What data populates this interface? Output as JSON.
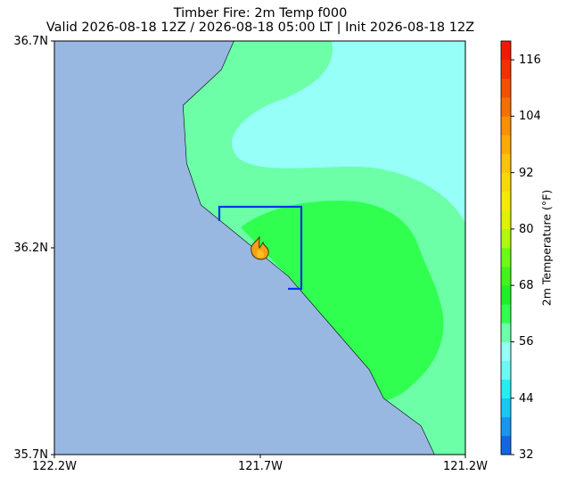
{
  "title": {
    "line1": "Timber Fire: 2m Temp f000",
    "line2": "Valid 2026-08-18 12Z / 2026-08-18 05:00 LT | Init 2026-08-18 12Z"
  },
  "axes": {
    "lat_ticks": [
      "36.7N",
      "36.2N",
      "35.7N"
    ],
    "lon_ticks": [
      "122.2W",
      "121.7W",
      "121.2W"
    ]
  },
  "colorbar": {
    "label": "2m Temperature (°F)",
    "ticks": [
      "32",
      "44",
      "56",
      "68",
      "80",
      "92",
      "104",
      "116"
    ],
    "levels": [
      {
        "from": 32,
        "to": 36,
        "color": "#1466e0"
      },
      {
        "from": 36,
        "to": 40,
        "color": "#1a96ee"
      },
      {
        "from": 40,
        "to": 44,
        "color": "#18c7f4"
      },
      {
        "from": 44,
        "to": 48,
        "color": "#25eef2"
      },
      {
        "from": 48,
        "to": 52,
        "color": "#6cf9f4"
      },
      {
        "from": 52,
        "to": 56,
        "color": "#96fff8"
      },
      {
        "from": 56,
        "to": 60,
        "color": "#6cffa8"
      },
      {
        "from": 60,
        "to": 64,
        "color": "#30ff50"
      },
      {
        "from": 64,
        "to": 68,
        "color": "#1ef026"
      },
      {
        "from": 68,
        "to": 72,
        "color": "#42f41a"
      },
      {
        "from": 72,
        "to": 76,
        "color": "#6cfa16"
      },
      {
        "from": 76,
        "to": 80,
        "color": "#b0f80e"
      },
      {
        "from": 80,
        "to": 84,
        "color": "#dcf206"
      },
      {
        "from": 84,
        "to": 88,
        "color": "#f4ea04"
      },
      {
        "from": 88,
        "to": 92,
        "color": "#f8d808"
      },
      {
        "from": 92,
        "to": 96,
        "color": "#fac40c"
      },
      {
        "from": 96,
        "to": 100,
        "color": "#fcaa08"
      },
      {
        "from": 100,
        "to": 104,
        "color": "#f89006"
      },
      {
        "from": 104,
        "to": 108,
        "color": "#f47004"
      },
      {
        "from": 108,
        "to": 112,
        "color": "#f25004"
      },
      {
        "from": 112,
        "to": 116,
        "color": "#f23004"
      },
      {
        "from": 116,
        "to": 120,
        "color": "#f01a04"
      }
    ]
  },
  "map": {
    "ocean_color": "#98b8e2",
    "fire_box_color": "#0033ee",
    "fire_icon": "flame-icon",
    "fill_colors": {
      "mild": "#96fff8",
      "cool": "#6cffa8",
      "warm": "#30ff50"
    }
  }
}
